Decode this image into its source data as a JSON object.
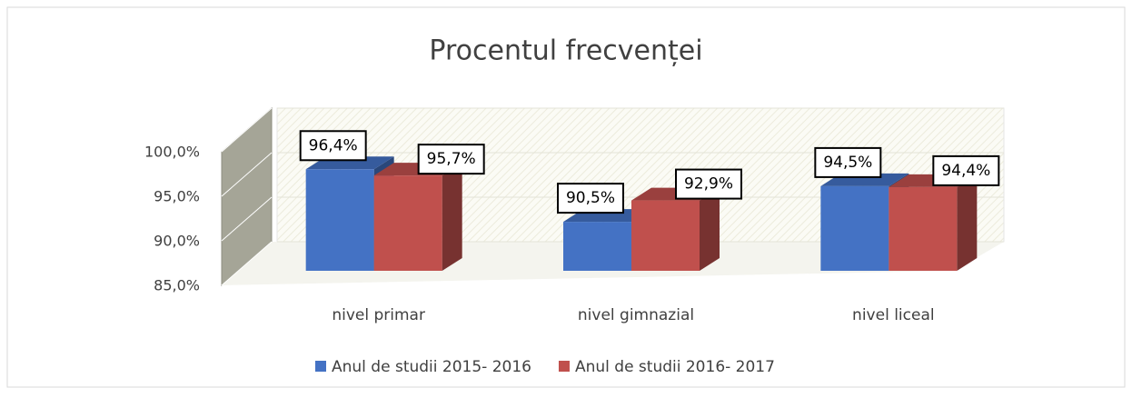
{
  "chart_data": {
    "type": "bar3d",
    "title": "Procentul frecvenței",
    "categories": [
      "nivel primar",
      "nivel gimnazial",
      "nivel liceal"
    ],
    "series": [
      {
        "name": "Anul de studii 2015- 2016",
        "color": "#4472c4",
        "values": [
          96.4,
          90.5,
          94.5
        ],
        "value_labels": [
          "96,4%",
          "90,5%",
          "94,5%"
        ]
      },
      {
        "name": "Anul de studii 2016- 2017",
        "color": "#c0504d",
        "values": [
          95.7,
          92.9,
          94.4
        ],
        "value_labels": [
          "95,7%",
          "92,9%",
          "94,4%"
        ]
      }
    ],
    "ylim": [
      85,
      100
    ],
    "yticks": [
      {
        "value": 85,
        "label": "85,0%"
      },
      {
        "value": 90,
        "label": "90,0%"
      },
      {
        "value": 95,
        "label": "95,0%"
      },
      {
        "value": 100,
        "label": "100,0%"
      }
    ],
    "grid": true,
    "legend": "bottom"
  }
}
